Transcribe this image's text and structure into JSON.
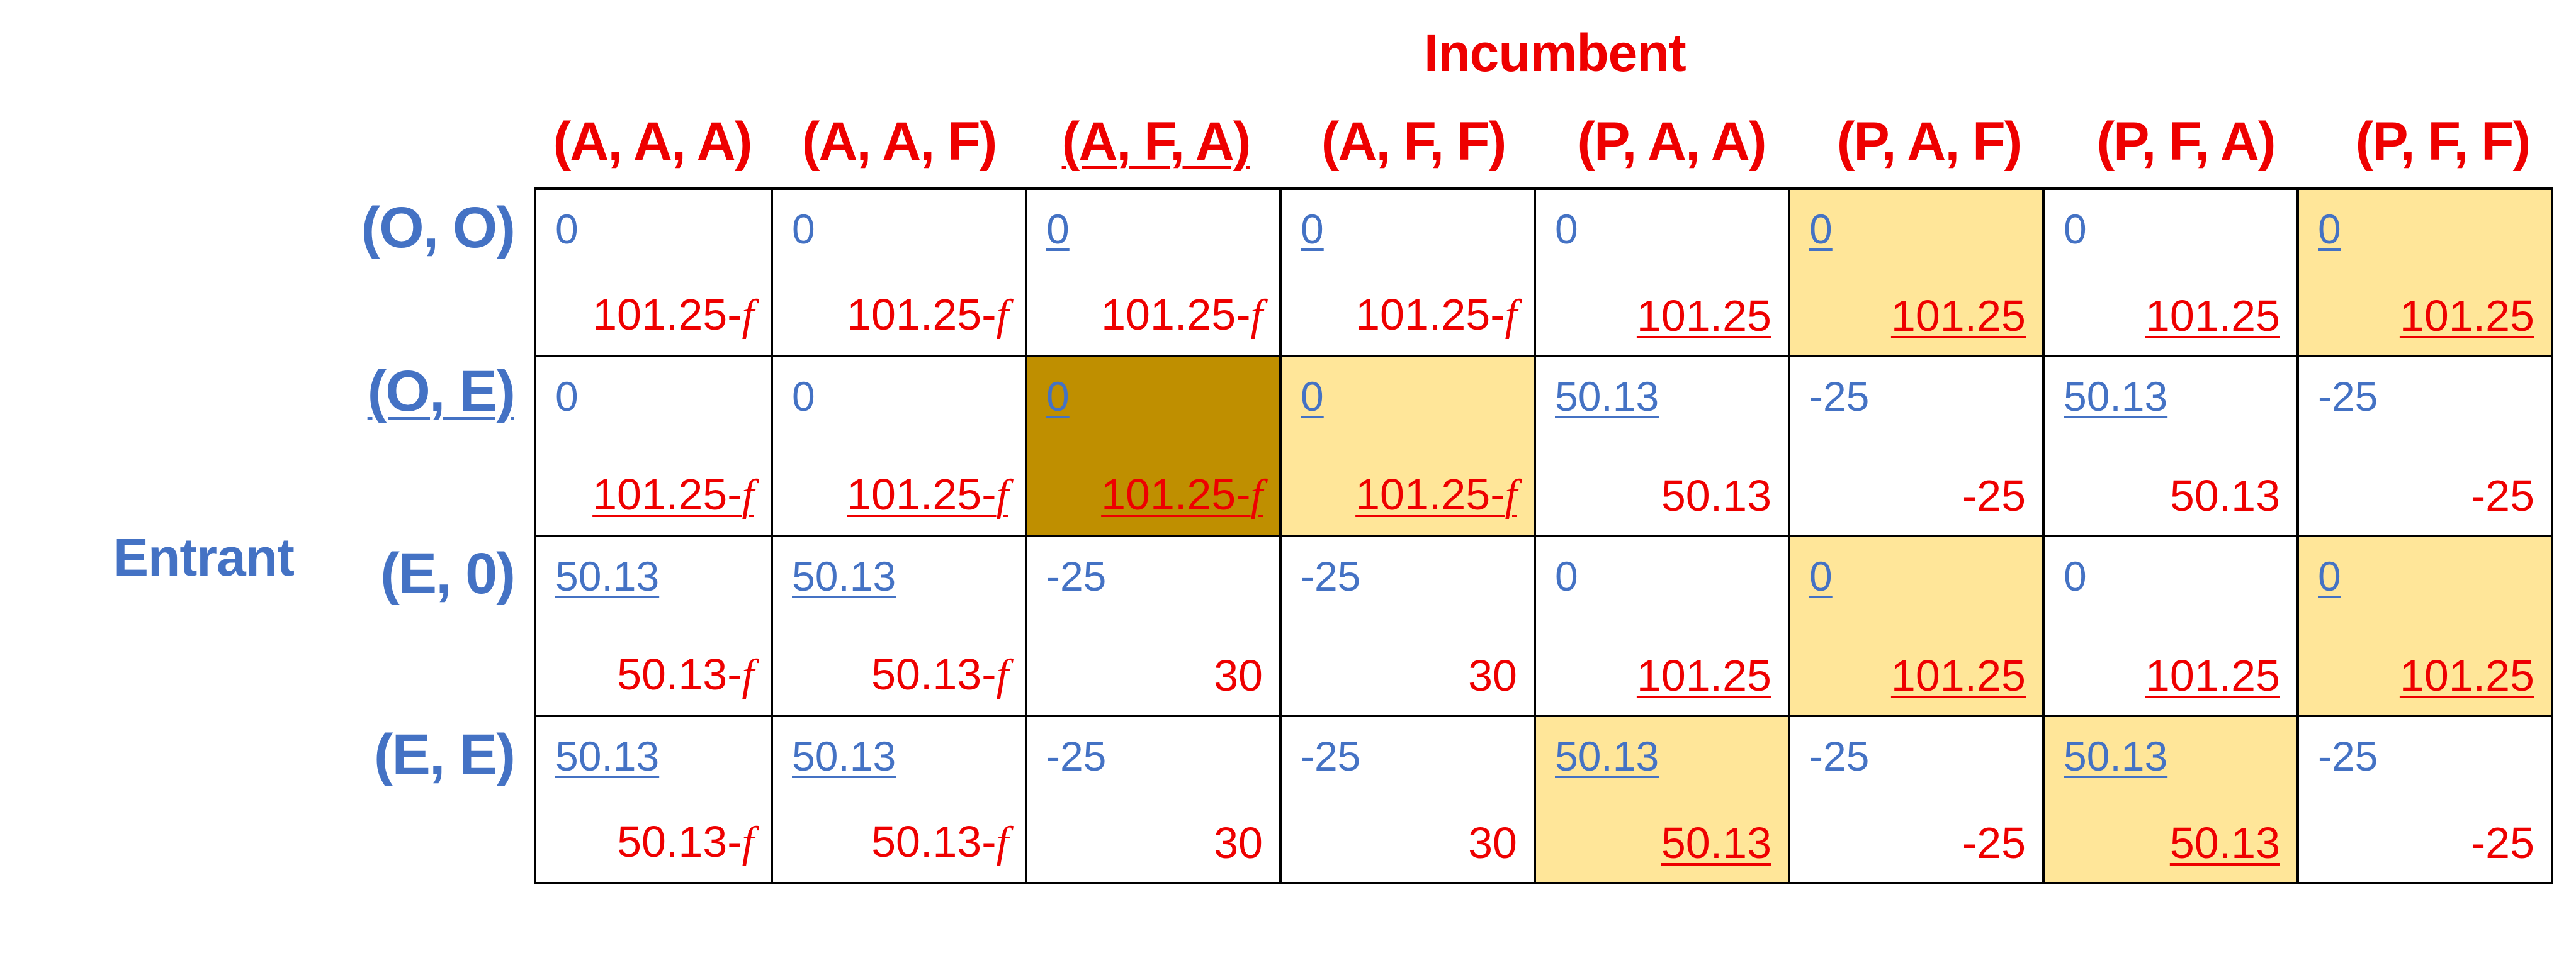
{
  "incumbent_label": "Incumbent",
  "entrant_label": "Entrant",
  "colors": {
    "incumbent": "#ee0000",
    "entrant": "#4472c4",
    "highlight_light": "#ffe699",
    "highlight_dark": "#bf8f00",
    "border": "#000000"
  },
  "columns": [
    {
      "label": "(A, A, A)",
      "underlined": false
    },
    {
      "label": "(A, A, F)",
      "underlined": false
    },
    {
      "label": "(A, F, A)",
      "underlined": true
    },
    {
      "label": "(A, F, F)",
      "underlined": false
    },
    {
      "label": "(P, A, A)",
      "underlined": false
    },
    {
      "label": "(P, A, F)",
      "underlined": false
    },
    {
      "label": "(P, F, A)",
      "underlined": false
    },
    {
      "label": "(P, F, F)",
      "underlined": false
    }
  ],
  "rows": [
    {
      "label": "(O, O)",
      "underlined": false
    },
    {
      "label": "(O, E)",
      "underlined": true
    },
    {
      "label": "(E, 0)",
      "underlined": false
    },
    {
      "label": "(E, E)",
      "underlined": false
    }
  ],
  "cells": [
    [
      {
        "entrant": "0",
        "incumbent": "101.25-",
        "f": true,
        "entrant_ul": false,
        "incumbent_ul": false,
        "fill": "none"
      },
      {
        "entrant": "0",
        "incumbent": "101.25-",
        "f": true,
        "entrant_ul": false,
        "incumbent_ul": false,
        "fill": "none"
      },
      {
        "entrant": "0",
        "incumbent": "101.25-",
        "f": true,
        "entrant_ul": true,
        "incumbent_ul": false,
        "fill": "none"
      },
      {
        "entrant": "0",
        "incumbent": "101.25-",
        "f": true,
        "entrant_ul": true,
        "incumbent_ul": false,
        "fill": "none"
      },
      {
        "entrant": "0",
        "incumbent": "101.25",
        "f": false,
        "entrant_ul": false,
        "incumbent_ul": true,
        "fill": "none"
      },
      {
        "entrant": "0",
        "incumbent": "101.25",
        "f": false,
        "entrant_ul": true,
        "incumbent_ul": true,
        "fill": "light"
      },
      {
        "entrant": "0",
        "incumbent": "101.25",
        "f": false,
        "entrant_ul": false,
        "incumbent_ul": true,
        "fill": "none"
      },
      {
        "entrant": "0",
        "incumbent": "101.25",
        "f": false,
        "entrant_ul": true,
        "incumbent_ul": true,
        "fill": "light"
      }
    ],
    [
      {
        "entrant": "0",
        "incumbent": "101.25-",
        "f": true,
        "entrant_ul": false,
        "incumbent_ul": true,
        "fill": "none"
      },
      {
        "entrant": "0",
        "incumbent": "101.25-",
        "f": true,
        "entrant_ul": false,
        "incumbent_ul": true,
        "fill": "none"
      },
      {
        "entrant": "0",
        "incumbent": "101.25-",
        "f": true,
        "entrant_ul": true,
        "incumbent_ul": true,
        "fill": "dark"
      },
      {
        "entrant": "0",
        "incumbent": "101.25-",
        "f": true,
        "entrant_ul": true,
        "incumbent_ul": true,
        "fill": "light"
      },
      {
        "entrant": "50.13",
        "incumbent": "50.13",
        "f": false,
        "entrant_ul": true,
        "incumbent_ul": false,
        "fill": "none"
      },
      {
        "entrant": "-25",
        "incumbent": "-25",
        "f": false,
        "entrant_ul": false,
        "incumbent_ul": false,
        "fill": "none"
      },
      {
        "entrant": "50.13",
        "incumbent": "50.13",
        "f": false,
        "entrant_ul": true,
        "incumbent_ul": false,
        "fill": "none"
      },
      {
        "entrant": "-25",
        "incumbent": "-25",
        "f": false,
        "entrant_ul": false,
        "incumbent_ul": false,
        "fill": "none"
      }
    ],
    [
      {
        "entrant": "50.13",
        "incumbent": "50.13-",
        "f": true,
        "entrant_ul": true,
        "incumbent_ul": false,
        "fill": "none"
      },
      {
        "entrant": "50.13",
        "incumbent": "50.13-",
        "f": true,
        "entrant_ul": true,
        "incumbent_ul": false,
        "fill": "none"
      },
      {
        "entrant": "-25",
        "incumbent": "30",
        "f": false,
        "entrant_ul": false,
        "incumbent_ul": false,
        "fill": "none"
      },
      {
        "entrant": "-25",
        "incumbent": "30",
        "f": false,
        "entrant_ul": false,
        "incumbent_ul": false,
        "fill": "none"
      },
      {
        "entrant": "0",
        "incumbent": "101.25",
        "f": false,
        "entrant_ul": false,
        "incumbent_ul": true,
        "fill": "none"
      },
      {
        "entrant": "0",
        "incumbent": "101.25",
        "f": false,
        "entrant_ul": true,
        "incumbent_ul": true,
        "fill": "light"
      },
      {
        "entrant": "0",
        "incumbent": "101.25",
        "f": false,
        "entrant_ul": false,
        "incumbent_ul": true,
        "fill": "none"
      },
      {
        "entrant": "0",
        "incumbent": "101.25",
        "f": false,
        "entrant_ul": true,
        "incumbent_ul": true,
        "fill": "light"
      }
    ],
    [
      {
        "entrant": "50.13",
        "incumbent": "50.13-",
        "f": true,
        "entrant_ul": true,
        "incumbent_ul": false,
        "fill": "none"
      },
      {
        "entrant": "50.13",
        "incumbent": "50.13-",
        "f": true,
        "entrant_ul": true,
        "incumbent_ul": false,
        "fill": "none"
      },
      {
        "entrant": "-25",
        "incumbent": "30",
        "f": false,
        "entrant_ul": false,
        "incumbent_ul": false,
        "fill": "none"
      },
      {
        "entrant": "-25",
        "incumbent": "30",
        "f": false,
        "entrant_ul": false,
        "incumbent_ul": false,
        "fill": "none"
      },
      {
        "entrant": "50.13",
        "incumbent": "50.13",
        "f": false,
        "entrant_ul": true,
        "incumbent_ul": true,
        "fill": "light"
      },
      {
        "entrant": "-25",
        "incumbent": "-25",
        "f": false,
        "entrant_ul": false,
        "incumbent_ul": false,
        "fill": "none"
      },
      {
        "entrant": "50.13",
        "incumbent": "50.13",
        "f": false,
        "entrant_ul": true,
        "incumbent_ul": true,
        "fill": "light"
      },
      {
        "entrant": "-25",
        "incumbent": "-25",
        "f": false,
        "entrant_ul": false,
        "incumbent_ul": false,
        "fill": "none"
      }
    ]
  ],
  "f_symbol": "f"
}
